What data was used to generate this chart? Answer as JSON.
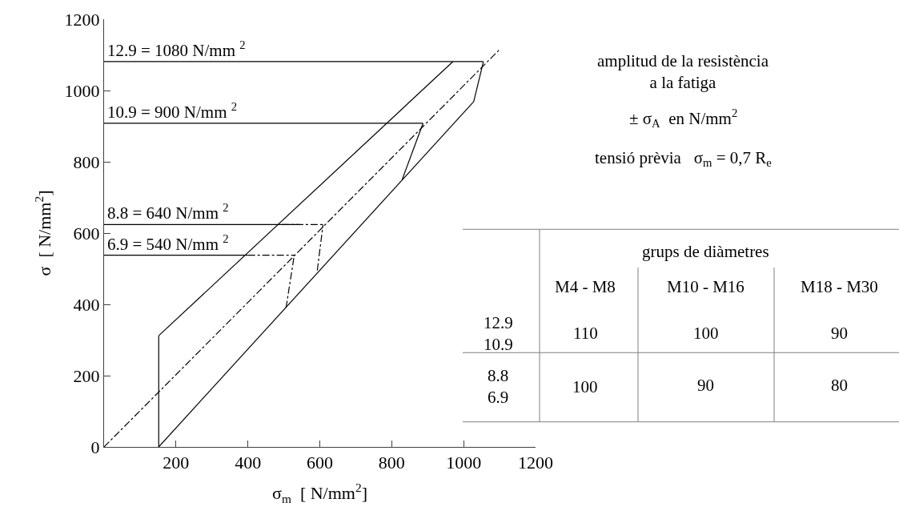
{
  "chart_data": {
    "type": "line",
    "xlabel": "σ$_{m}$  [ N/mm$^{2}$]",
    "ylabel": "σ  [ N/mm$^{2}$]",
    "xlim": [
      0,
      1200
    ],
    "xticks": [
      {
        "value": 0,
        "label": null
      },
      200,
      400,
      600,
      800,
      1000,
      1200
    ],
    "ylim": [
      0,
      1200
    ],
    "yticks": [
      0,
      200,
      400,
      600,
      800,
      1000,
      1200
    ],
    "marker": "none",
    "series": [
      {
        "color": "#000000",
        "line_style": "dashdot",
        "x": [
          0,
          1100
        ],
        "values": [
          0,
          1115
        ]
      },
      {
        "color": "#000000",
        "line_style": "solid",
        "x": [
          152,
          152
        ],
        "values": [
          0,
          312
        ]
      },
      {
        "color": "#000000",
        "line_style": "solid",
        "x": [
          152,
          970
        ],
        "values": [
          312,
          1081
        ]
      },
      {
        "color": "#000000",
        "line_style": "solid",
        "x": [
          152,
          1028
        ],
        "values": [
          0,
          969
        ]
      },
      {
        "color": "#000000",
        "line_style": "solid",
        "x": [
          1028,
          1055
        ],
        "values": [
          969,
          1081
        ]
      },
      {
        "color": "#000000",
        "line_style": "solid",
        "x": [
          829,
          887
        ],
        "values": [
          750,
          908
        ]
      },
      {
        "color": "#000000",
        "line_style": "solid",
        "x": [
          0,
          1055
        ],
        "values": [
          1081,
          1081
        ]
      },
      {
        "color": "#000000",
        "line_style": "solid",
        "x": [
          0,
          887
        ],
        "values": [
          908,
          908
        ]
      },
      {
        "color": "#000000",
        "line_style": "solid",
        "x": [
          0,
          542
        ],
        "values": [
          624,
          624
        ]
      },
      {
        "color": "#000000",
        "line_style": "solid",
        "x": [
          0,
          400
        ],
        "values": [
          538,
          538
        ]
      },
      {
        "color": "#000000",
        "line_style": "dashdot",
        "x": [
          494,
          609
        ],
        "values": [
          624,
          624
        ]
      },
      {
        "color": "#000000",
        "line_style": "dashdot",
        "x": [
          593,
          609
        ],
        "values": [
          495,
          624
        ]
      },
      {
        "color": "#000000",
        "line_style": "dashdot",
        "x": [
          400,
          529
        ],
        "values": [
          538,
          538
        ]
      },
      {
        "color": "#000000",
        "line_style": "dashdot",
        "x": [
          506,
          529
        ],
        "values": [
          390,
          538
        ]
      }
    ],
    "annotations": [
      {
        "text": "12.9 = 1080 N/mm $^{2}$",
        "y": 1081
      },
      {
        "text": "10.9 = 900 N/mm $^{2}$",
        "y": 908
      },
      {
        "text": "8.8 = 640 N/mm $^{2}$",
        "y": 624
      },
      {
        "text": "6.9 = 540 N/mm $^{2}$",
        "y": 538
      },
      "amplitud de la resistència\na la fatiga",
      "± σ$_{A}$  en N/mm$^{2}$",
      "tensió prèvia   σ$_{m}$ = 0,7 R$_{e}$",
      "grups de diàmetres",
      "M4 - M8",
      "M10 - M16",
      "M18 - M30",
      "12.9\n10.9",
      "110",
      "100",
      "90",
      "8.8\n6.9",
      "100",
      "90",
      "80"
    ]
  }
}
